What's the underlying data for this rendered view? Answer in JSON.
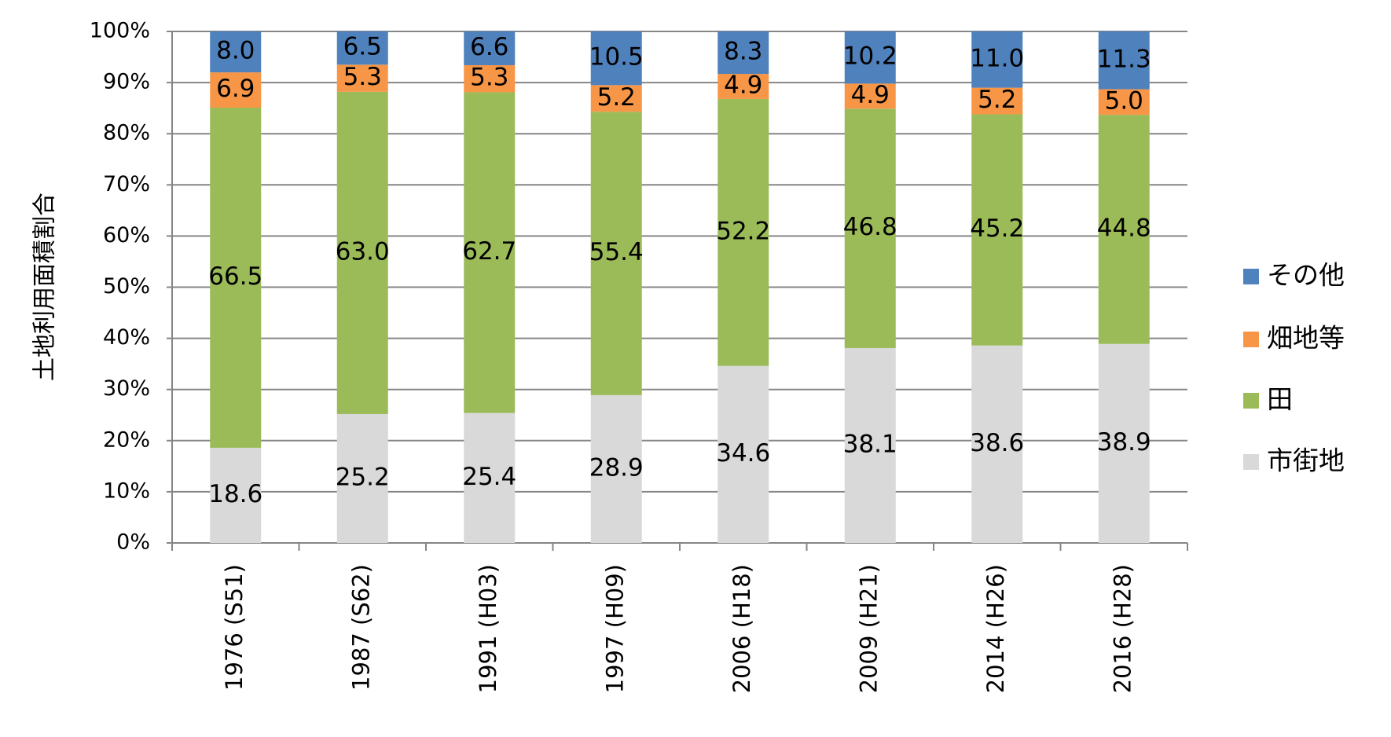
{
  "chart_data": {
    "type": "stacked_bar",
    "y_label": "土地利用面積割合",
    "categories": [
      "1976 (S51)",
      "1987 (S62)",
      "1991 (H03)",
      "1997 (H09)",
      "2006 (H18)",
      "2009 (H21)",
      "2014 (H26)",
      "2016 (H28)"
    ],
    "series": [
      {
        "name": "市街地",
        "color": "#d9d9d9",
        "values": [
          18.6,
          25.2,
          25.4,
          28.9,
          34.6,
          38.1,
          38.6,
          38.9
        ],
        "value_labels": [
          "18.6",
          "25.2",
          "25.4",
          "28.9",
          "34.6",
          "38.1",
          "38.6",
          "38.9"
        ]
      },
      {
        "name": "田",
        "color": "#9bbb59",
        "values": [
          66.5,
          63.0,
          62.7,
          55.4,
          52.2,
          46.8,
          45.2,
          44.8
        ],
        "value_labels": [
          "66.5",
          "63.0",
          "62.7",
          "55.4",
          "52.2",
          "46.8",
          "45.2",
          "44.8"
        ]
      },
      {
        "name": "畑地等",
        "color": "#f79646",
        "values": [
          6.9,
          5.3,
          5.3,
          5.2,
          4.9,
          4.9,
          5.2,
          5.0
        ],
        "value_labels": [
          "6.9",
          "5.3",
          "5.3",
          "5.2",
          "4.9",
          "4.9",
          "5.2",
          "5.0"
        ]
      },
      {
        "name": "その他",
        "color": "#4f81bd",
        "values": [
          8.0,
          6.5,
          6.6,
          10.5,
          8.3,
          10.2,
          11.0,
          11.3
        ],
        "value_labels": [
          "8.0",
          "6.5",
          "6.6",
          "10.5",
          "8.3",
          "10.2",
          "11.0",
          "11.3"
        ]
      }
    ],
    "ylim": [
      0,
      100
    ],
    "yticks": [
      {
        "value": 0,
        "label": "0%"
      },
      {
        "value": 10,
        "label": "10%"
      },
      {
        "value": 20,
        "label": "20%"
      },
      {
        "value": 30,
        "label": "30%"
      },
      {
        "value": 40,
        "label": "40%"
      },
      {
        "value": 50,
        "label": "50%"
      },
      {
        "value": 60,
        "label": "60%"
      },
      {
        "value": 70,
        "label": "70%"
      },
      {
        "value": 80,
        "label": "80%"
      },
      {
        "value": 90,
        "label": "90%"
      },
      {
        "value": 100,
        "label": "100%"
      }
    ],
    "grid": true,
    "legend": "right"
  }
}
